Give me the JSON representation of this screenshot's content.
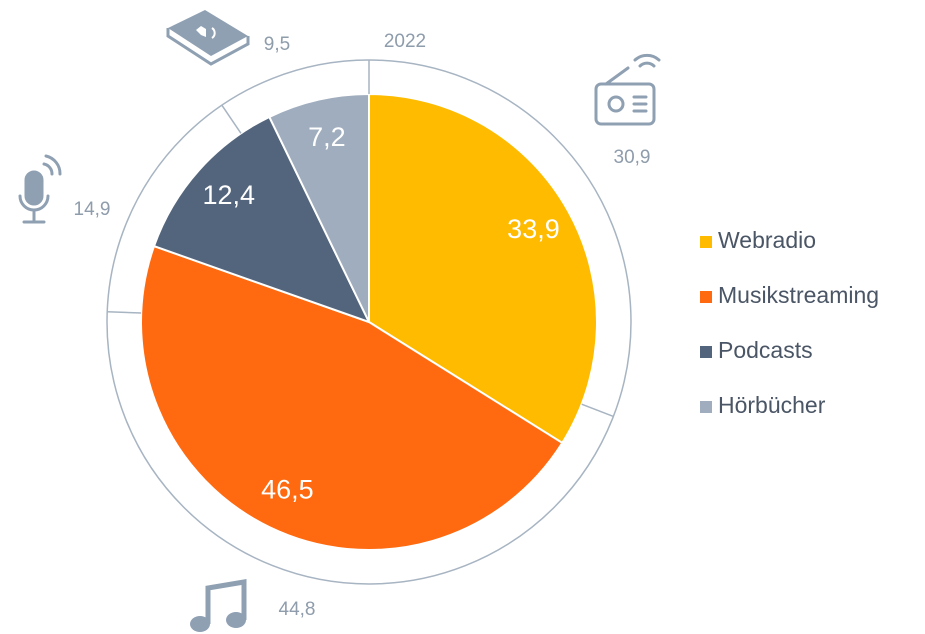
{
  "chart_data": {
    "type": "pie",
    "categories": [
      "Webradio",
      "Musikstreaming",
      "Podcasts",
      "Hörbücher"
    ],
    "values": [
      33.9,
      46.5,
      12.4,
      7.2
    ],
    "value_labels": [
      "33,9",
      "46,5",
      "12,4",
      "7,2"
    ],
    "colors": [
      "#ffbb00",
      "#ff6a10",
      "#53657d",
      "#9fadbe"
    ],
    "ring": {
      "label": "2022",
      "values": [
        30.9,
        44.8,
        14.9,
        9.5
      ],
      "value_labels": [
        "30,9",
        "44,8",
        "14,9",
        "9,5"
      ]
    },
    "legend": "right"
  }
}
